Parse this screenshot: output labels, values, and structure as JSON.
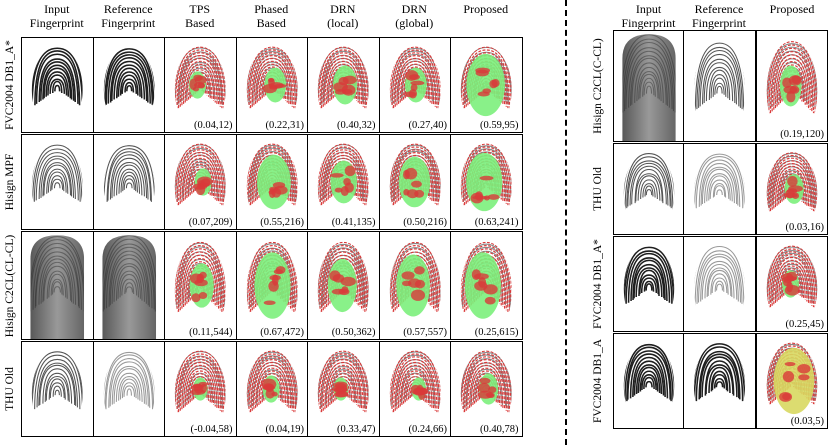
{
  "left": {
    "columns": [
      {
        "label": "Input\nFingerprint",
        "kind": "input"
      },
      {
        "label": "Reference\nFingerprint",
        "kind": "reference"
      },
      {
        "label": "TPS\nBased",
        "kind": "overlay"
      },
      {
        "label": "Phased\nBased",
        "kind": "overlay"
      },
      {
        "label": "DRN\n(local)",
        "kind": "overlay"
      },
      {
        "label": "DRN\n(global)",
        "kind": "overlay"
      },
      {
        "label": "Proposed",
        "kind": "overlay"
      }
    ],
    "rows": [
      {
        "label": "FVC2004 DB1_A*",
        "input_tone": "dark",
        "ref_tone": "dark",
        "scores": [
          "(0.04,12)",
          "(0.22,31)",
          "(0.40,32)",
          "(0.27,40)",
          "(0.59,95)"
        ],
        "green_fraction": [
          0.35,
          0.45,
          0.5,
          0.45,
          0.8
        ]
      },
      {
        "label": "Hisign MPF",
        "input_tone": "medium",
        "ref_tone": "medium",
        "scores": [
          "(0.07,209)",
          "(0.55,216)",
          "(0.41,135)",
          "(0.50,216)",
          "(0.63,241)"
        ],
        "green_fraction": [
          0.35,
          0.7,
          0.55,
          0.65,
          0.75
        ]
      },
      {
        "label": "Hisign C2CL(CL-CL)",
        "input_tone": "contactless",
        "ref_tone": "contactless",
        "scores": [
          "(0.11,544)",
          "(0.67,472)",
          "(0.50,362)",
          "(0.57,557)",
          "(0.25,615)"
        ],
        "green_fraction": [
          0.5,
          0.75,
          0.6,
          0.7,
          0.75
        ]
      },
      {
        "label": "THU Old",
        "input_tone": "medium",
        "ref_tone": "light",
        "scores": [
          "(-0.04,58)",
          "(0.04,19)",
          "(0.33,47)",
          "(0.24,66)",
          "(0.40,78)"
        ],
        "green_fraction": [
          0.3,
          0.35,
          0.3,
          0.3,
          0.4
        ]
      }
    ]
  },
  "right": {
    "columns": [
      {
        "label": "Input\nFingerprint",
        "kind": "input"
      },
      {
        "label": "Reference\nFingerprint",
        "kind": "reference"
      },
      {
        "label": "Proposed",
        "kind": "overlay"
      }
    ],
    "rows": [
      {
        "label": "Hisign C2CL(C-CL)",
        "input_tone": "contactless",
        "ref_tone": "medium",
        "score": "(0.19,120)",
        "green_fraction": 0.45
      },
      {
        "label": "THU Old",
        "input_tone": "medium",
        "ref_tone": "light",
        "score": "(0.03,16)",
        "green_fraction": 0.4
      },
      {
        "label": "FVC2004 DB1_A*",
        "input_tone": "dark",
        "ref_tone": "light",
        "score": "(0.25,45)",
        "green_fraction": 0.35
      },
      {
        "label": "FVC2004 DB1_A",
        "input_tone": "dark",
        "ref_tone": "dark",
        "score": "(0.03,5)",
        "green_fraction": 0.85
      }
    ]
  },
  "colors": {
    "ridge_dark": "#222222",
    "ridge_gray": "#8a8a8a",
    "overlay_red": "#d93a3a",
    "overlay_green": "#7cf07c",
    "overlay_yellow": "#d8d860"
  }
}
